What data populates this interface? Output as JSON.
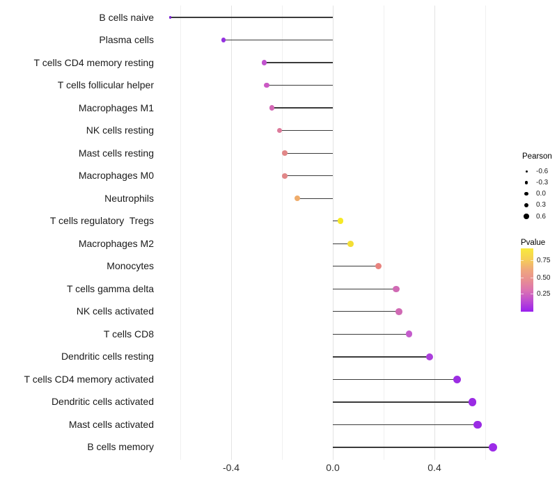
{
  "colors": {
    "background": "#ffffff",
    "gridline_major": "#e3e3e3",
    "gridline_minor": "#f0f0f0",
    "stem": "#3a3a3a",
    "text": "#1a1a1a"
  },
  "chart_data": {
    "type": "scatter",
    "variant": "lollipop",
    "title": "",
    "xlabel": "",
    "ylabel": "",
    "xlim": [
      -0.72,
      0.67
    ],
    "grid": true,
    "gridline_values": [
      -0.6,
      -0.4,
      -0.2,
      0,
      0.2,
      0.4,
      0.6
    ],
    "major_gridline_values": [
      -0.4,
      0,
      0.4
    ],
    "x_ticks": [
      {
        "value": -0.4,
        "label": "-0.4"
      },
      {
        "value": 0.0,
        "label": "0.0"
      },
      {
        "value": 0.4,
        "label": "0.4"
      }
    ],
    "points": [
      {
        "label": "B cells naive",
        "pearson": -0.64,
        "size": 3.6,
        "color": "#7B24D4"
      },
      {
        "label": "Plasma cells",
        "pearson": -0.43,
        "size": 6.8,
        "color": "#9530E0"
      },
      {
        "label": "T cells CD4 memory resting",
        "pearson": -0.27,
        "size": 7.4,
        "color": "#C152CE"
      },
      {
        "label": "T cells follicular helper",
        "pearson": -0.26,
        "size": 7.4,
        "color": "#CB59C4"
      },
      {
        "label": "Macrophages M1",
        "pearson": -0.24,
        "size": 7.5,
        "color": "#D367B4"
      },
      {
        "label": "NK cells resting",
        "pearson": -0.21,
        "size": 7.7,
        "color": "#DD7B9B"
      },
      {
        "label": "Mast cells resting",
        "pearson": -0.19,
        "size": 7.8,
        "color": "#E18788"
      },
      {
        "label": "Macrophages M0",
        "pearson": -0.19,
        "size": 7.8,
        "color": "#E18788"
      },
      {
        "label": "Neutrophils",
        "pearson": -0.14,
        "size": 8.1,
        "color": "#EFAC6B"
      },
      {
        "label": "T cells regulatory  Tregs",
        "pearson": 0.03,
        "size": 8.7,
        "color": "#F6E926"
      },
      {
        "label": "Macrophages M2",
        "pearson": 0.07,
        "size": 8.8,
        "color": "#F3DE35"
      },
      {
        "label": "Monocytes",
        "pearson": 0.18,
        "size": 9.3,
        "color": "#E8837E"
      },
      {
        "label": "T cells gamma delta",
        "pearson": 0.25,
        "size": 9.6,
        "color": "#D06AB4"
      },
      {
        "label": "NK cells activated",
        "pearson": 0.26,
        "size": 9.7,
        "color": "#D06AB4"
      },
      {
        "label": "T cells CD8",
        "pearson": 0.3,
        "size": 9.9,
        "color": "#C45CCC"
      },
      {
        "label": "Dendritic cells resting",
        "pearson": 0.38,
        "size": 10.4,
        "color": "#AB3FDC"
      },
      {
        "label": "T cells CD4 memory activated",
        "pearson": 0.49,
        "size": 11.0,
        "color": "#9C2EE3"
      },
      {
        "label": "Dendritic cells activated",
        "pearson": 0.55,
        "size": 11.4,
        "color": "#9A2BE4"
      },
      {
        "label": "Mast cells activated",
        "pearson": 0.57,
        "size": 11.5,
        "color": "#9A2BE4"
      },
      {
        "label": "B cells memory",
        "pearson": 0.63,
        "size": 12.2,
        "color": "#9C2BE8"
      }
    ],
    "pearson_legend": {
      "title": "Pearson",
      "dot_color": "#000000",
      "entries": [
        {
          "label": "-0.6",
          "diameter": 3.0
        },
        {
          "label": "-0.3",
          "diameter": 4.6
        },
        {
          "label": "0.0",
          "diameter": 5.8
        },
        {
          "label": "0.3",
          "diameter": 6.6
        },
        {
          "label": "0.6",
          "diameter": 7.6
        }
      ]
    },
    "pvalue_legend": {
      "title": "Pvalue",
      "tick_labels": [
        "0.75",
        "0.50",
        "0.25"
      ],
      "gradient_stops": [
        "#F8EA3B",
        "#F6D055",
        "#EFA87C",
        "#E88F92",
        "#DB72B2",
        "#BC4BD2",
        "#9920EE"
      ]
    }
  }
}
